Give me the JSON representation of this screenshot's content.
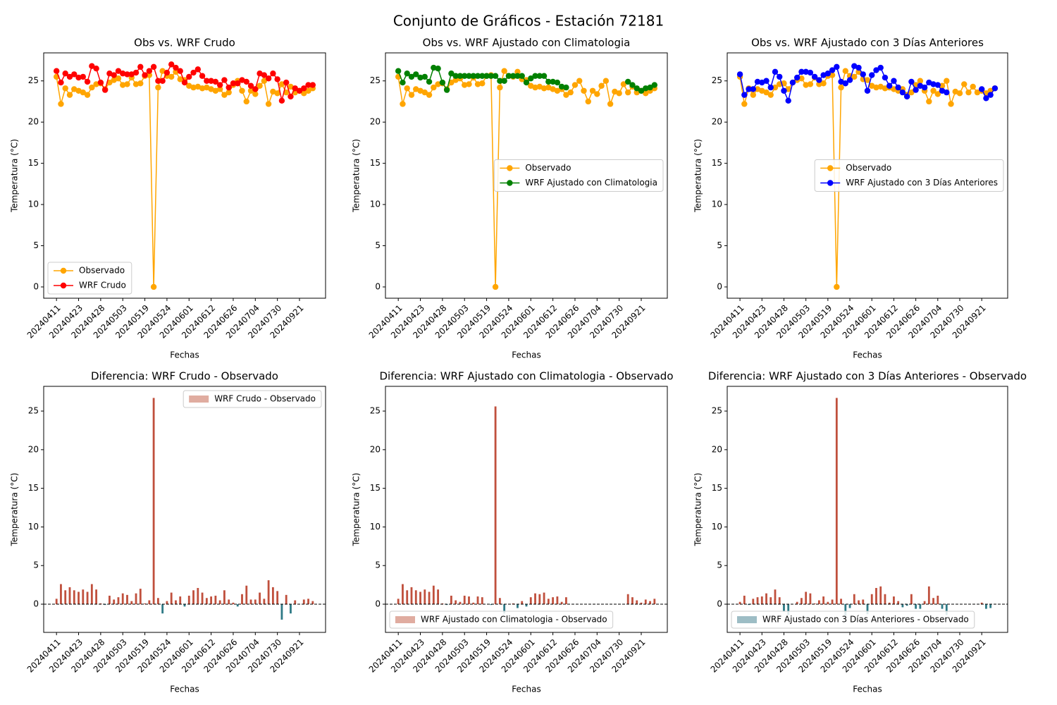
{
  "title": "Conjunto de Gráficos - Estación 72181",
  "chart_data": [
    {
      "type": "line",
      "title": "Obs vs. WRF Crudo",
      "xlabel": "Fechas",
      "ylabel": "Temperatura (°C)",
      "categories": [
        "20240411",
        null,
        null,
        null,
        null,
        "20240423",
        null,
        null,
        null,
        null,
        "20240428",
        null,
        null,
        null,
        null,
        "20240503",
        null,
        null,
        null,
        null,
        "20240519",
        null,
        null,
        null,
        null,
        "20240524",
        null,
        null,
        null,
        null,
        "20240601",
        null,
        null,
        null,
        null,
        "20240612",
        null,
        null,
        null,
        null,
        "20240626",
        null,
        null,
        null,
        null,
        "20240704",
        null,
        null,
        null,
        null,
        "20240730",
        null,
        null,
        null,
        null,
        "20240921",
        null,
        null,
        null
      ],
      "ylim": [
        -1.37,
        28.4
      ],
      "yticks": [
        0,
        5,
        10,
        15,
        20,
        25
      ],
      "legend": "lower left",
      "series": [
        {
          "name": "Observado",
          "color": "#ffa500",
          "values": [
            25.5,
            22.2,
            24.1,
            23.3,
            24.0,
            23.8,
            23.6,
            23.3,
            24.2,
            24.6,
            24.7,
            24.0,
            24.8,
            25.1,
            25.3,
            24.5,
            24.6,
            25.4,
            24.6,
            24.7,
            25.6,
            25.7,
            0,
            24.2,
            26.2,
            25.6,
            25.5,
            26.1,
            25.2,
            25.1,
            24.4,
            24.2,
            24.3,
            24.1,
            24.2,
            24.0,
            23.8,
            24.0,
            23.3,
            23.6,
            24.5,
            25.0,
            23.8,
            22.5,
            23.8,
            23.4,
            24.4,
            25.0,
            22.2,
            23.7,
            23.5,
            24.6,
            23.6,
            24.3,
            23.6,
            23.8,
            23.5,
            23.8,
            24.1
          ]
        },
        {
          "name": "WRF Crudo",
          "color": "#ff0000",
          "values": [
            26.2,
            24.8,
            25.9,
            25.5,
            25.8,
            25.4,
            25.5,
            24.9,
            26.8,
            26.5,
            24.8,
            23.9,
            25.9,
            25.7,
            26.2,
            25.9,
            25.8,
            25.8,
            26.0,
            26.7,
            25.7,
            26.2,
            26.7,
            25.0,
            25.0,
            26.0,
            27.0,
            26.6,
            26.2,
            24.8,
            25.5,
            26.0,
            26.4,
            25.6,
            25.0,
            25.0,
            24.9,
            24.5,
            25.1,
            24.2,
            24.7,
            24.7,
            25.1,
            24.9,
            24.4,
            24.0,
            25.9,
            25.7,
            25.3,
            25.9,
            25.2,
            22.6,
            24.8,
            23.1,
            24.1,
            23.8,
            24.1,
            24.5,
            24.5
          ]
        }
      ]
    },
    {
      "type": "line",
      "title": "Obs vs. WRF Ajustado con Climatologia",
      "xlabel": "Fechas",
      "ylabel": "Temperatura (°C)",
      "categories": [
        "20240411",
        null,
        null,
        null,
        null,
        "20240423",
        null,
        null,
        null,
        null,
        "20240428",
        null,
        null,
        null,
        null,
        "20240503",
        null,
        null,
        null,
        null,
        "20240519",
        null,
        null,
        null,
        null,
        "20240524",
        null,
        null,
        null,
        null,
        "20240601",
        null,
        null,
        null,
        null,
        "20240612",
        null,
        null,
        null,
        null,
        "20240626",
        null,
        null,
        null,
        null,
        "20240704",
        null,
        null,
        null,
        null,
        "20240730",
        null,
        null,
        null,
        null,
        "20240921",
        null,
        null,
        null
      ],
      "ylim": [
        -1.37,
        28.4
      ],
      "yticks": [
        0,
        5,
        10,
        15,
        20,
        25
      ],
      "legend": "center right",
      "series": [
        {
          "name": "Observado",
          "color": "#ffa500",
          "values": [
            25.5,
            22.2,
            24.1,
            23.3,
            24.0,
            23.8,
            23.6,
            23.3,
            24.2,
            24.6,
            24.7,
            24.0,
            24.8,
            25.1,
            25.3,
            24.5,
            24.6,
            25.4,
            24.6,
            24.7,
            25.6,
            25.7,
            0,
            24.2,
            26.2,
            25.6,
            25.5,
            26.1,
            25.2,
            25.1,
            24.4,
            24.2,
            24.3,
            24.1,
            24.2,
            24.0,
            23.8,
            24.0,
            23.3,
            23.6,
            24.5,
            25.0,
            23.8,
            22.5,
            23.8,
            23.4,
            24.4,
            25.0,
            22.2,
            23.7,
            23.5,
            24.6,
            23.6,
            24.3,
            23.6,
            23.8,
            23.5,
            23.8,
            24.1
          ]
        },
        {
          "name": "WRF Ajustado con Climatologia",
          "color": "#008000",
          "values": [
            26.2,
            24.8,
            25.9,
            25.5,
            25.8,
            25.4,
            25.5,
            24.9,
            26.6,
            26.5,
            24.8,
            23.9,
            25.9,
            25.6,
            25.6,
            25.6,
            25.6,
            25.6,
            25.6,
            25.6,
            25.6,
            25.6,
            25.6,
            25.0,
            25.0,
            25.6,
            25.6,
            25.6,
            25.6,
            24.8,
            25.3,
            25.6,
            25.6,
            25.6,
            24.9,
            24.9,
            24.8,
            24.3,
            24.2,
            null,
            null,
            null,
            null,
            null,
            null,
            null,
            null,
            null,
            null,
            null,
            null,
            null,
            24.9,
            24.5,
            24.1,
            23.8,
            24.1,
            24.2,
            24.5
          ]
        }
      ]
    },
    {
      "type": "line",
      "title": "Obs vs. WRF Ajustado con 3 Días Anteriores",
      "xlabel": "Fechas",
      "ylabel": "Temperatura (°C)",
      "categories": [
        "20240411",
        null,
        null,
        null,
        null,
        "20240423",
        null,
        null,
        null,
        null,
        "20240428",
        null,
        null,
        null,
        null,
        "20240503",
        null,
        null,
        null,
        null,
        "20240519",
        null,
        null,
        null,
        null,
        "20240524",
        null,
        null,
        null,
        null,
        "20240601",
        null,
        null,
        null,
        null,
        "20240612",
        null,
        null,
        null,
        null,
        "20240626",
        null,
        null,
        null,
        null,
        "20240704",
        null,
        null,
        null,
        null,
        "20240730",
        null,
        null,
        null,
        null,
        "20240921",
        null,
        null,
        null
      ],
      "ylim": [
        -1.37,
        28.4
      ],
      "yticks": [
        0,
        5,
        10,
        15,
        20,
        25
      ],
      "legend": "center right",
      "series": [
        {
          "name": "Observado",
          "color": "#ffa500",
          "values": [
            25.5,
            22.2,
            24.1,
            23.3,
            24.0,
            23.8,
            23.6,
            23.3,
            24.2,
            24.6,
            24.7,
            24.0,
            24.8,
            25.1,
            25.3,
            24.5,
            24.6,
            25.4,
            24.6,
            24.7,
            25.6,
            25.7,
            0,
            24.2,
            26.2,
            25.6,
            25.5,
            26.1,
            25.2,
            25.1,
            24.4,
            24.2,
            24.3,
            24.1,
            24.2,
            24.0,
            23.8,
            24.0,
            23.3,
            23.6,
            24.5,
            25.0,
            23.8,
            22.5,
            23.8,
            23.4,
            24.4,
            25.0,
            22.2,
            23.7,
            23.5,
            24.6,
            23.6,
            24.3,
            23.6,
            23.8,
            23.5,
            23.8,
            24.1
          ]
        },
        {
          "name": "WRF Ajustado con 3 Días Anteriores",
          "color": "#0000ff",
          "values": [
            25.8,
            23.3,
            24.0,
            24.0,
            24.9,
            24.8,
            25.0,
            24.2,
            26.1,
            25.5,
            23.8,
            22.6,
            24.8,
            25.4,
            26.1,
            26.1,
            26.0,
            25.5,
            25.1,
            25.7,
            25.9,
            26.3,
            26.7,
            24.9,
            24.7,
            25.1,
            26.8,
            26.6,
            25.8,
            23.8,
            25.7,
            26.3,
            26.6,
            25.4,
            24.4,
            25.0,
            24.2,
            23.6,
            23.1,
            24.9,
            23.9,
            24.4,
            24.2,
            24.8,
            24.6,
            24.5,
            23.8,
            23.6,
            null,
            null,
            null,
            null,
            null,
            null,
            null,
            24.0,
            22.9,
            23.3,
            24.1
          ]
        }
      ]
    },
    {
      "type": "bar",
      "title": "Diferencia: WRF Crudo - Observado",
      "xlabel": "Fechas",
      "ylabel": "Temperatura (°C)",
      "categories": [
        "20240411",
        null,
        null,
        null,
        null,
        "20240423",
        null,
        null,
        null,
        null,
        "20240428",
        null,
        null,
        null,
        null,
        "20240503",
        null,
        null,
        null,
        null,
        "20240519",
        null,
        null,
        null,
        null,
        "20240524",
        null,
        null,
        null,
        null,
        "20240601",
        null,
        null,
        null,
        null,
        "20240612",
        null,
        null,
        null,
        null,
        "20240626",
        null,
        null,
        null,
        null,
        "20240704",
        null,
        null,
        null,
        null,
        "20240730",
        null,
        null,
        null,
        null,
        "20240921",
        null,
        null,
        null
      ],
      "ylim": [
        -3.65,
        28.2
      ],
      "yticks": [
        0,
        5,
        10,
        15,
        20,
        25
      ],
      "legend": "upper right",
      "zero_line": true,
      "positive_color": "#c0503d",
      "negative_color": "#2f7a86",
      "series": [
        {
          "name": "WRF Crudo - Observado",
          "color": "#e0aca0",
          "values": [
            0.7,
            2.6,
            1.8,
            2.2,
            1.8,
            1.6,
            1.9,
            1.6,
            2.6,
            1.9,
            0.1,
            -0.1,
            1.1,
            0.6,
            0.9,
            1.4,
            1.2,
            0.4,
            1.4,
            2.0,
            0.1,
            0.5,
            26.7,
            0.8,
            -1.2,
            0.4,
            1.5,
            0.5,
            1.0,
            -0.3,
            1.1,
            1.8,
            2.1,
            1.5,
            0.8,
            1.0,
            1.1,
            0.5,
            1.8,
            0.6,
            0.2,
            -0.3,
            1.3,
            2.4,
            0.6,
            0.6,
            1.5,
            0.7,
            3.1,
            2.2,
            1.7,
            -2.0,
            1.2,
            -1.2,
            0.5,
            0.0,
            0.6,
            0.7,
            0.4
          ]
        }
      ]
    },
    {
      "type": "bar",
      "title": "Diferencia: WRF Ajustado con Climatologia - Observado",
      "xlabel": "Fechas",
      "ylabel": "Temperatura (°C)",
      "categories": [
        "20240411",
        null,
        null,
        null,
        null,
        "20240423",
        null,
        null,
        null,
        null,
        "20240428",
        null,
        null,
        null,
        null,
        "20240503",
        null,
        null,
        null,
        null,
        "20240519",
        null,
        null,
        null,
        null,
        "20240524",
        null,
        null,
        null,
        null,
        "20240601",
        null,
        null,
        null,
        null,
        "20240612",
        null,
        null,
        null,
        null,
        "20240626",
        null,
        null,
        null,
        null,
        "20240704",
        null,
        null,
        null,
        null,
        "20240730",
        null,
        null,
        null,
        null,
        "20240921",
        null,
        null,
        null
      ],
      "ylim": [
        -3.65,
        28.2
      ],
      "yticks": [
        0,
        5,
        10,
        15,
        20,
        25
      ],
      "legend": "lower left",
      "zero_line": true,
      "positive_color": "#c0503d",
      "negative_color": "#2f7a86",
      "series": [
        {
          "name": "WRF Ajustado con Climatologia - Observado",
          "color": "#e0aca0",
          "values": [
            0.7,
            2.6,
            1.8,
            2.2,
            1.8,
            1.6,
            1.9,
            1.6,
            2.4,
            1.9,
            0.1,
            -0.1,
            1.1,
            0.5,
            0.3,
            1.1,
            1.0,
            0.2,
            1.0,
            0.9,
            0.0,
            -0.1,
            25.6,
            0.8,
            -1.2,
            0.0,
            0.1,
            -0.5,
            0.4,
            -0.3,
            0.9,
            1.4,
            1.3,
            1.5,
            0.7,
            0.9,
            1.0,
            0.3,
            0.9,
            null,
            null,
            null,
            null,
            null,
            null,
            null,
            null,
            null,
            null,
            null,
            null,
            null,
            1.3,
            0.9,
            0.5,
            0.2,
            0.6,
            0.4,
            0.7
          ]
        }
      ]
    },
    {
      "type": "bar",
      "title": "Diferencia: WRF Ajustado con 3 Días Anteriores - Observado",
      "xlabel": "Fechas",
      "ylabel": "Temperatura (°C)",
      "categories": [
        "20240411",
        null,
        null,
        null,
        null,
        "20240423",
        null,
        null,
        null,
        null,
        "20240428",
        null,
        null,
        null,
        null,
        "20240503",
        null,
        null,
        null,
        null,
        "20240519",
        null,
        null,
        null,
        null,
        "20240524",
        null,
        null,
        null,
        null,
        "20240601",
        null,
        null,
        null,
        null,
        "20240612",
        null,
        null,
        null,
        null,
        "20240626",
        null,
        null,
        null,
        null,
        "20240704",
        null,
        null,
        null,
        null,
        "20240730",
        null,
        null,
        null,
        null,
        "20240921",
        null,
        null,
        null
      ],
      "ylim": [
        -3.65,
        28.2
      ],
      "yticks": [
        0,
        5,
        10,
        15,
        20,
        25
      ],
      "legend": "lower left",
      "zero_line": true,
      "positive_color": "#c0503d",
      "negative_color": "#2f7a86",
      "series": [
        {
          "name": "WRF Ajustado con 3 Días Anteriores - Observado",
          "color": "#9dbdc5",
          "values": [
            0.3,
            1.1,
            -0.1,
            0.7,
            0.9,
            1.0,
            1.4,
            0.9,
            1.9,
            0.9,
            -0.9,
            -1.4,
            0.0,
            0.3,
            0.8,
            1.6,
            1.4,
            0.1,
            0.5,
            1.0,
            0.3,
            0.6,
            26.7,
            0.7,
            -1.5,
            -0.5,
            1.3,
            0.5,
            0.6,
            -1.3,
            1.3,
            2.1,
            2.3,
            1.3,
            0.2,
            1.0,
            0.4,
            -0.4,
            -0.2,
            1.3,
            -0.6,
            -0.6,
            0.4,
            2.3,
            0.8,
            1.1,
            -0.6,
            -1.4,
            null,
            null,
            null,
            null,
            null,
            null,
            null,
            0.2,
            -0.6,
            -0.5,
            0.0
          ]
        }
      ]
    }
  ]
}
